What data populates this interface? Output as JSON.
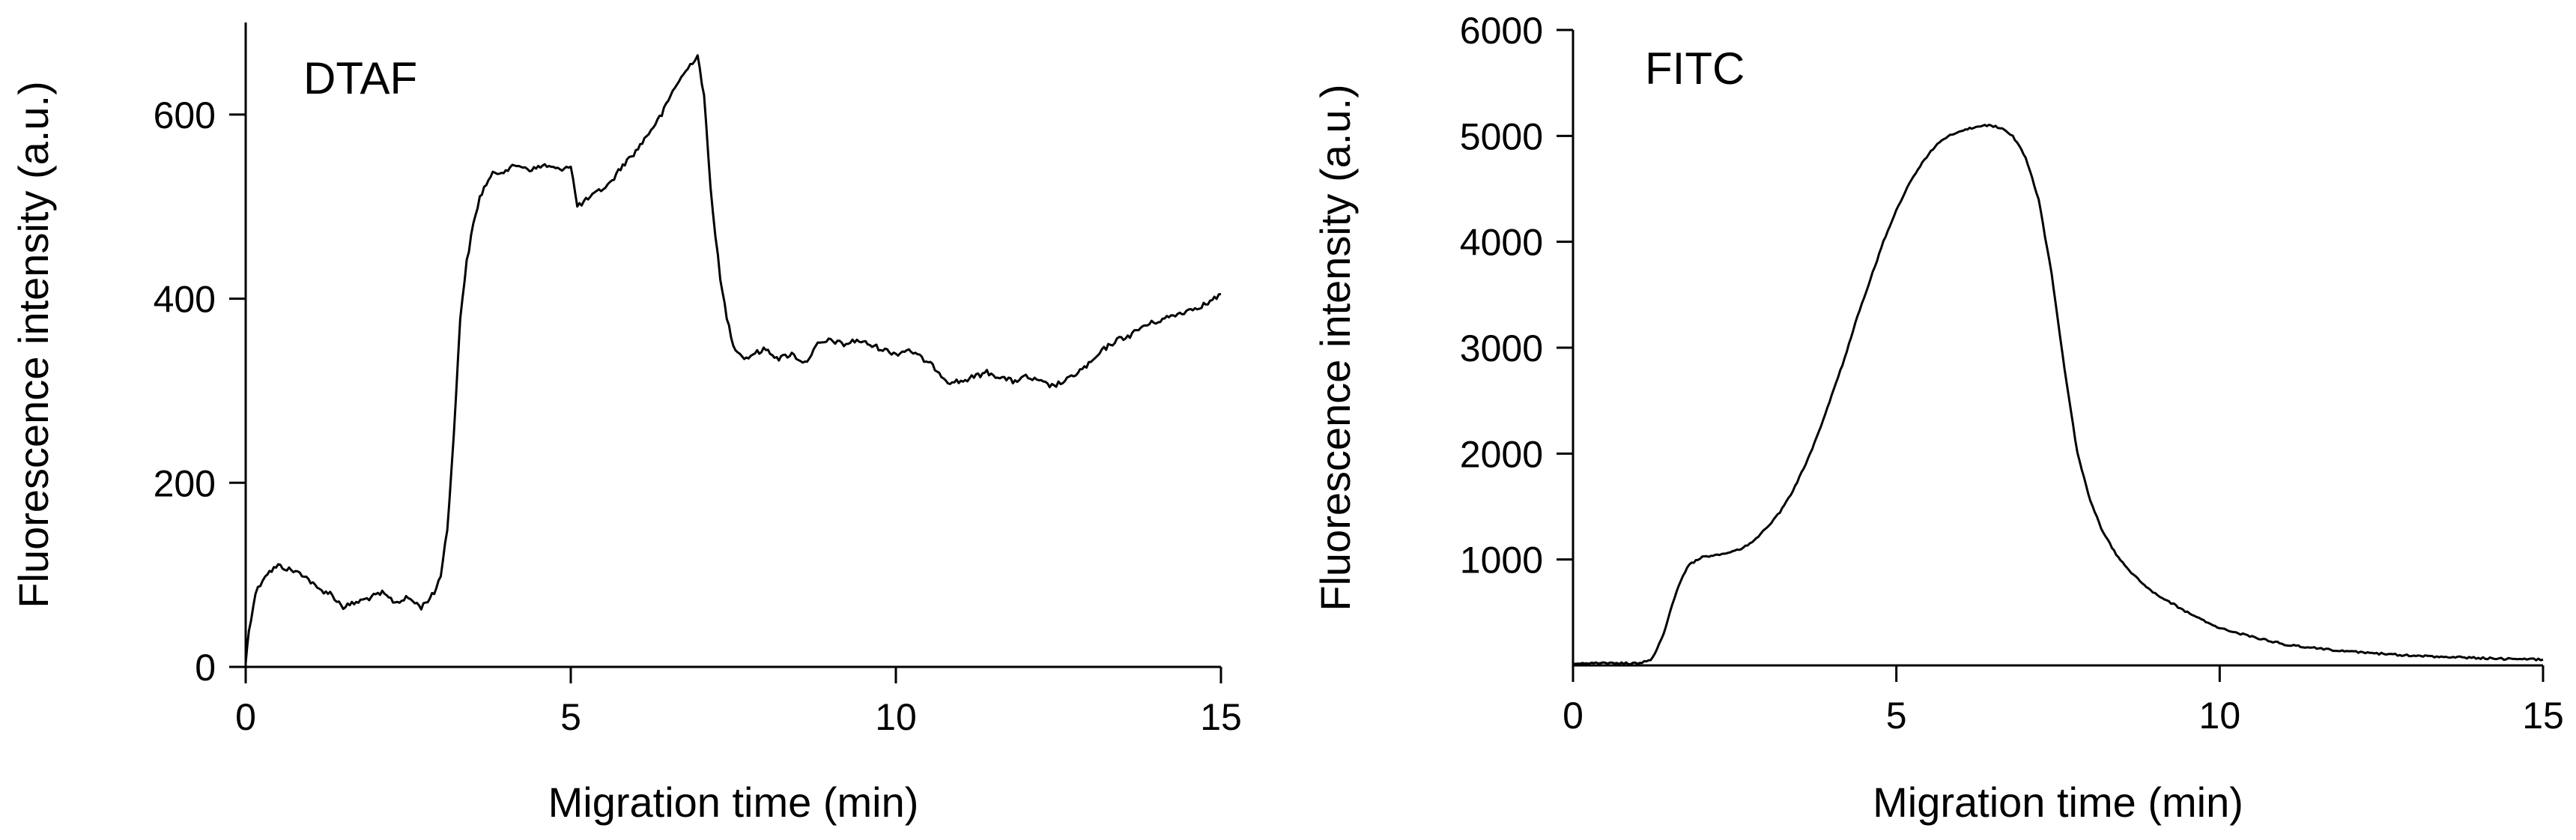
{
  "chart_data": [
    {
      "type": "line",
      "panel_label": "DTAF",
      "xlabel": "Migration time (min)",
      "ylabel": "Fluorescence intensity (a.u.)",
      "xlim": [
        0,
        15
      ],
      "ylim": [
        0,
        700
      ],
      "xticks": [
        0,
        5,
        10,
        15
      ],
      "yticks": [
        0,
        200,
        400,
        600
      ],
      "grid": false,
      "series": [
        {
          "x": [
            0,
            0.05,
            0.15,
            0.3,
            0.5,
            0.7,
            0.9,
            1.1,
            1.3,
            1.5,
            1.7,
            1.9,
            2.1,
            2.3,
            2.5,
            2.7,
            2.9,
            3.0,
            3.1,
            3.2,
            3.3,
            3.4,
            3.5,
            3.6,
            3.7,
            3.8,
            4.0,
            4.2,
            4.4,
            4.6,
            4.8,
            5.0,
            5.1,
            5.2,
            5.4,
            5.6,
            5.8,
            6.0,
            6.2,
            6.4,
            6.6,
            6.8,
            6.95,
            7.05,
            7.15,
            7.3,
            7.4,
            7.5,
            7.6,
            7.7,
            7.8,
            8.0,
            8.2,
            8.4,
            8.6,
            8.8,
            9.0,
            9.2,
            9.4,
            9.6,
            9.8,
            10.0,
            10.2,
            10.4,
            10.6,
            10.8,
            11.0,
            11.2,
            11.4,
            11.6,
            11.8,
            12.0,
            12.2,
            12.4,
            12.6,
            12.8,
            13.0,
            13.2,
            13.4,
            13.6,
            13.8,
            14.0,
            14.2,
            14.4,
            14.6,
            14.8,
            15.0
          ],
          "y": [
            5,
            40,
            80,
            100,
            110,
            105,
            100,
            85,
            80,
            65,
            70,
            75,
            80,
            70,
            75,
            65,
            80,
            100,
            150,
            250,
            380,
            440,
            480,
            510,
            525,
            535,
            540,
            545,
            540,
            545,
            540,
            545,
            500,
            505,
            515,
            525,
            545,
            560,
            580,
            600,
            630,
            650,
            665,
            620,
            520,
            420,
            380,
            350,
            340,
            335,
            340,
            345,
            335,
            340,
            330,
            350,
            355,
            350,
            355,
            350,
            345,
            340,
            345,
            335,
            325,
            310,
            310,
            315,
            320,
            315,
            310,
            315,
            310,
            305,
            310,
            320,
            330,
            345,
            355,
            360,
            370,
            375,
            380,
            385,
            390,
            395,
            405
          ]
        }
      ]
    },
    {
      "type": "line",
      "panel_label": "FITC",
      "xlabel": "Migration time (min)",
      "ylabel": "Fluorescence intensity (a.u.)",
      "xlim": [
        0,
        15
      ],
      "ylim": [
        0,
        6000
      ],
      "xticks": [
        0,
        5,
        10,
        15
      ],
      "yticks": [
        1000,
        2000,
        3000,
        4000,
        5000,
        6000
      ],
      "grid": false,
      "series": [
        {
          "x": [
            0,
            0.5,
            1.0,
            1.2,
            1.3,
            1.4,
            1.5,
            1.6,
            1.7,
            1.8,
            1.9,
            2.0,
            2.2,
            2.4,
            2.6,
            2.8,
            3.0,
            3.2,
            3.4,
            3.6,
            3.8,
            4.0,
            4.2,
            4.4,
            4.6,
            4.8,
            5.0,
            5.2,
            5.4,
            5.6,
            5.8,
            6.0,
            6.2,
            6.4,
            6.6,
            6.8,
            7.0,
            7.2,
            7.4,
            7.6,
            7.8,
            8.0,
            8.2,
            8.4,
            8.6,
            8.8,
            9.0,
            9.5,
            10.0,
            10.5,
            11.0,
            11.5,
            12.0,
            12.5,
            13.0,
            13.5,
            14.0,
            14.5,
            15.0
          ],
          "y": [
            20,
            20,
            20,
            50,
            150,
            300,
            500,
            700,
            850,
            950,
            990,
            1020,
            1040,
            1060,
            1100,
            1180,
            1300,
            1450,
            1650,
            1900,
            2200,
            2550,
            2900,
            3300,
            3650,
            4000,
            4300,
            4550,
            4750,
            4900,
            5000,
            5050,
            5080,
            5100,
            5080,
            5000,
            4800,
            4400,
            3700,
            2800,
            2000,
            1550,
            1250,
            1050,
            900,
            780,
            680,
            500,
            350,
            270,
            200,
            160,
            130,
            110,
            90,
            80,
            70,
            60,
            55
          ]
        }
      ]
    }
  ]
}
